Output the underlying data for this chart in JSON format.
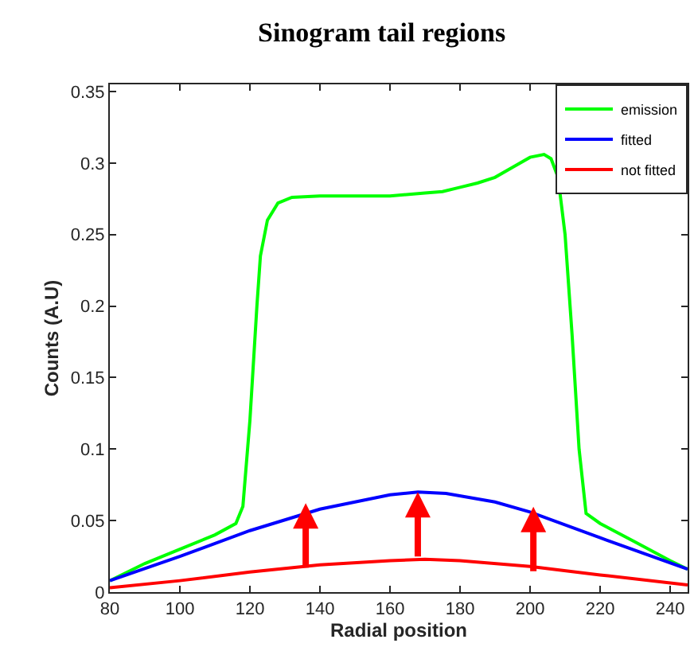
{
  "chart_data": {
    "type": "line",
    "title": "Sinogram tail regions",
    "xlabel": "Radial position",
    "ylabel": "Counts (A.U)",
    "xlim": [
      80,
      245
    ],
    "xticks": [
      80,
      100,
      120,
      140,
      160,
      180,
      200,
      220,
      240
    ],
    "ylim": [
      0,
      0.355
    ],
    "yticks": [
      0,
      0.05,
      0.1,
      0.15,
      0.2,
      0.25,
      0.3,
      0.35
    ],
    "legend": "top right",
    "marker": "none",
    "line_style": "solid",
    "series": [
      {
        "name": "emission",
        "color": "#00ff00",
        "x": [
          80,
          90,
          100,
          110,
          116,
          118,
          120,
          122,
          123,
          125,
          128,
          132,
          140,
          150,
          160,
          170,
          175,
          180,
          185,
          190,
          195,
          200,
          204,
          206,
          208,
          210,
          212,
          214,
          216,
          220,
          230,
          240,
          245
        ],
        "values": [
          0.008,
          0.02,
          0.03,
          0.04,
          0.048,
          0.06,
          0.12,
          0.2,
          0.235,
          0.26,
          0.272,
          0.276,
          0.277,
          0.277,
          0.277,
          0.279,
          0.28,
          0.283,
          0.286,
          0.29,
          0.297,
          0.304,
          0.306,
          0.303,
          0.29,
          0.25,
          0.18,
          0.1,
          0.055,
          0.048,
          0.035,
          0.022,
          0.016
        ]
      },
      {
        "name": "fitted",
        "color": "#0000ff",
        "x": [
          80,
          100,
          120,
          140,
          160,
          168,
          176,
          190,
          200,
          220,
          245
        ],
        "values": [
          0.008,
          0.025,
          0.043,
          0.058,
          0.068,
          0.07,
          0.069,
          0.063,
          0.056,
          0.038,
          0.016
        ]
      },
      {
        "name": "not fitted",
        "color": "#ff0000",
        "x": [
          80,
          100,
          120,
          140,
          160,
          170,
          180,
          200,
          220,
          245
        ],
        "values": [
          0.003,
          0.008,
          0.014,
          0.019,
          0.022,
          0.023,
          0.022,
          0.018,
          0.012,
          0.005
        ]
      }
    ]
  }
}
